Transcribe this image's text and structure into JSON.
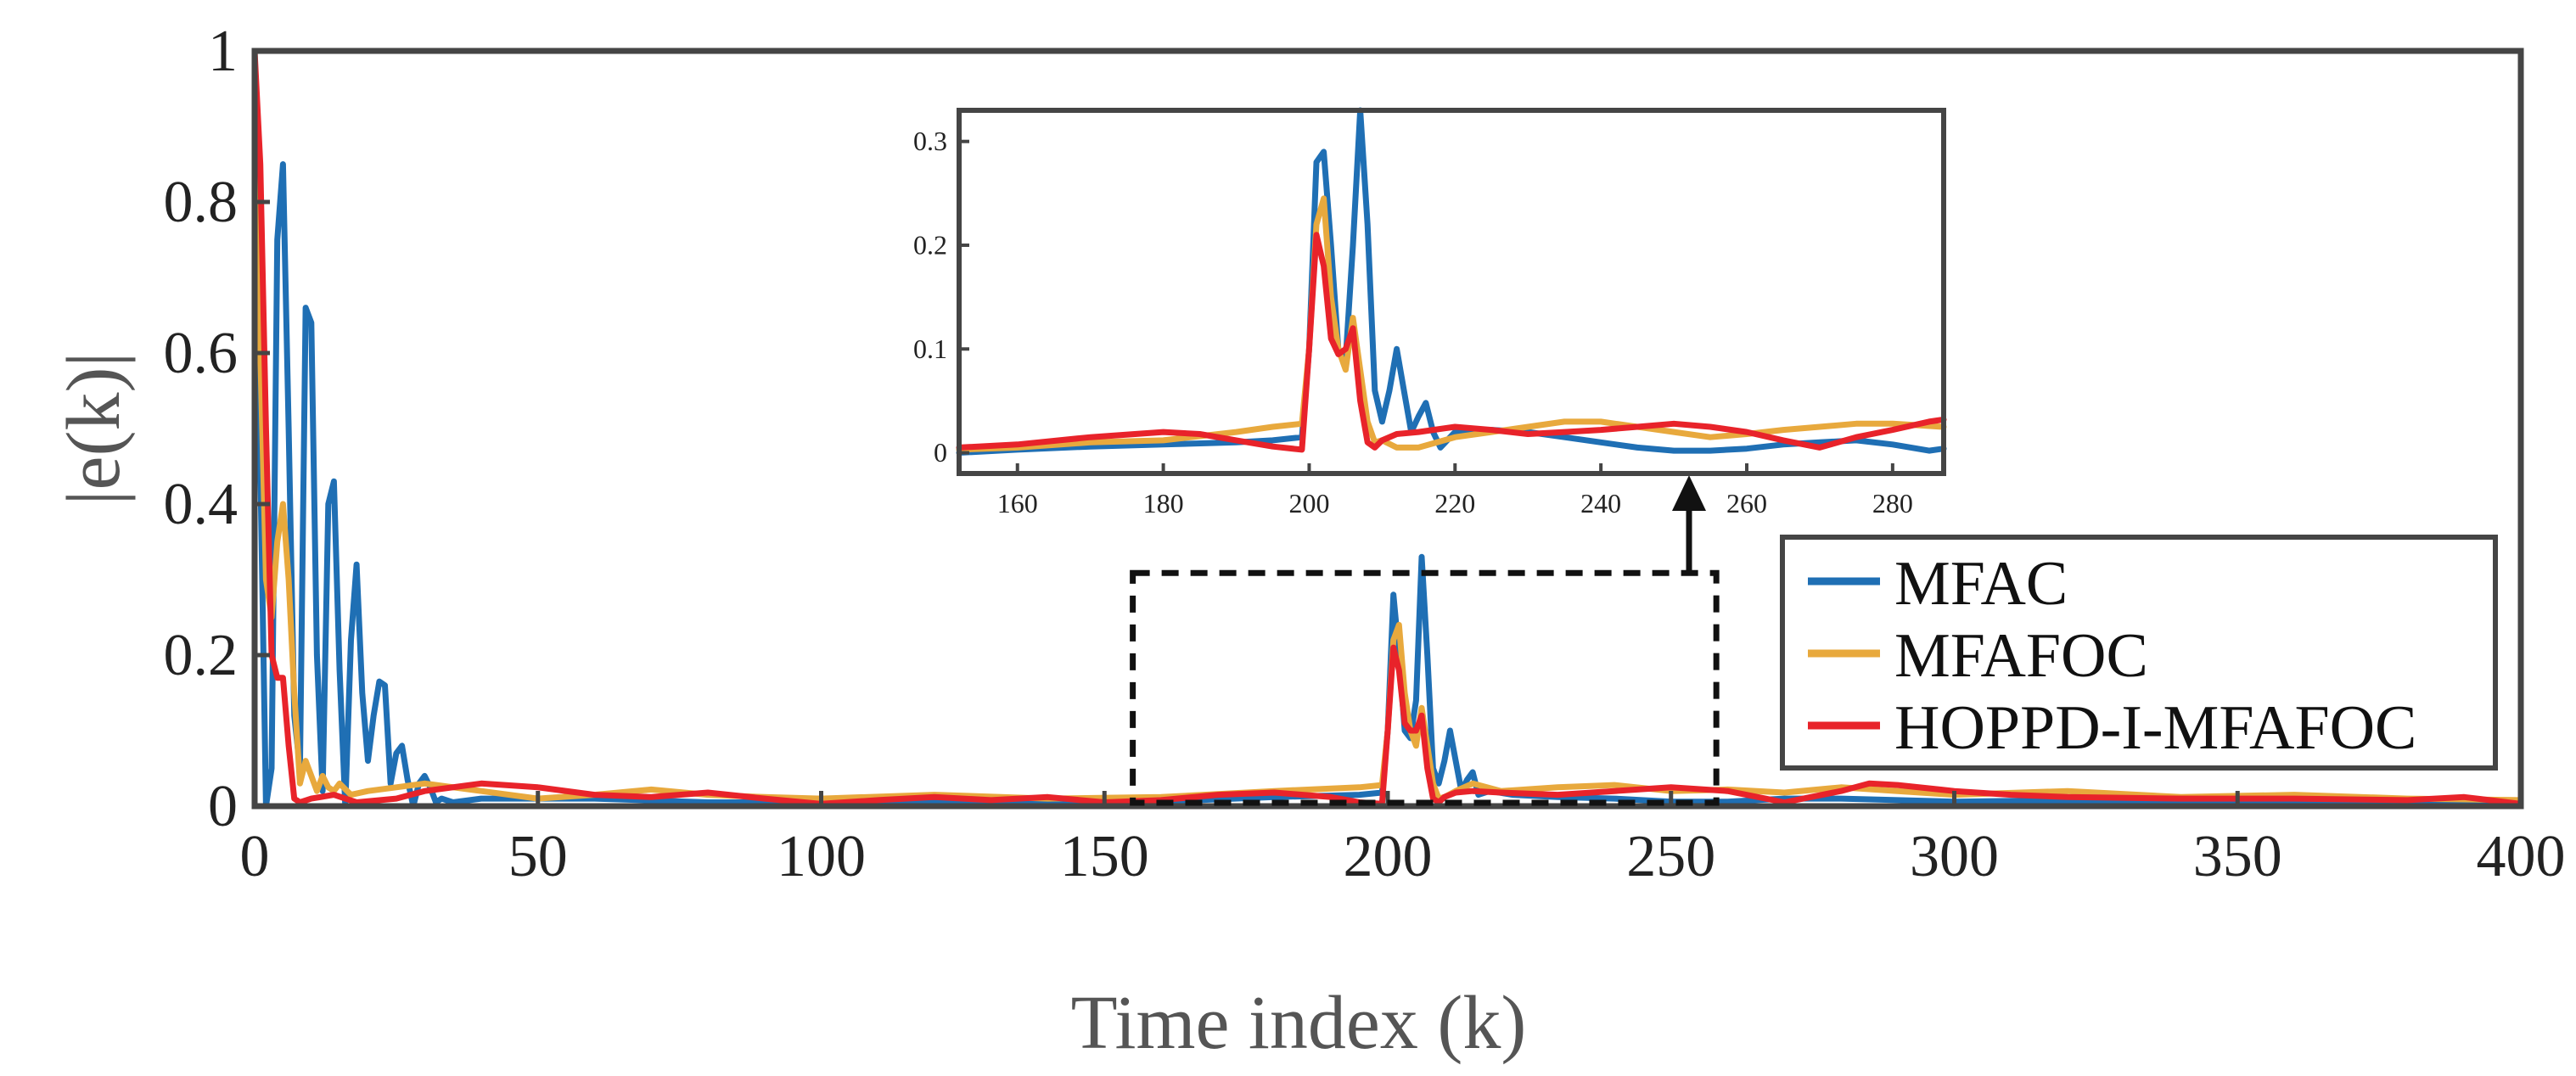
{
  "chart_data": [
    {
      "id": "main",
      "type": "line",
      "title": "",
      "xlabel": "Time index (k)",
      "ylabel": "|e(k)|",
      "xlim": [
        0,
        400
      ],
      "ylim": [
        0,
        1
      ],
      "xticks": [
        0,
        50,
        100,
        150,
        200,
        250,
        300,
        350,
        400
      ],
      "yticks": [
        0,
        0.2,
        0.4,
        0.6,
        0.8,
        1
      ],
      "xtick_labels": [
        "0",
        "50",
        "100",
        "150",
        "200",
        "250",
        "300",
        "350",
        "400"
      ],
      "ytick_labels": [
        "0",
        "0.2",
        "0.4",
        "0.6",
        "0.8",
        "1"
      ],
      "grid": false,
      "legend_position": "right",
      "series": [
        {
          "name": "MFAC",
          "color": "#1f6fb4",
          "x": [
            0,
            1,
            2,
            3,
            4,
            5,
            6,
            7,
            8,
            9,
            10,
            11,
            12,
            13,
            14,
            15,
            16,
            17,
            18,
            19,
            20,
            21,
            22,
            23,
            24,
            25,
            26,
            27,
            28,
            29,
            30,
            31,
            32,
            33,
            35,
            40,
            50,
            60,
            80,
            100,
            120,
            140,
            160,
            180,
            195,
            199,
            200,
            201,
            202,
            203,
            204,
            205,
            206,
            207,
            208,
            209,
            210,
            211,
            212,
            213,
            214,
            215,
            216,
            218,
            222,
            230,
            240,
            250,
            260,
            270,
            280,
            290,
            300,
            320,
            340,
            360,
            380,
            400
          ],
          "y": [
            1.0,
            0.45,
            0.0,
            0.05,
            0.75,
            0.85,
            0.5,
            0.12,
            0.05,
            0.66,
            0.64,
            0.2,
            0.02,
            0.4,
            0.43,
            0.18,
            0.0,
            0.22,
            0.32,
            0.15,
            0.06,
            0.12,
            0.165,
            0.16,
            0.03,
            0.07,
            0.08,
            0.035,
            0.0,
            0.03,
            0.04,
            0.025,
            0.005,
            0.01,
            0.005,
            0.01,
            0.01,
            0.01,
            0.005,
            0.005,
            0.008,
            0.004,
            0.006,
            0.012,
            0.015,
            0.018,
            0.1,
            0.28,
            0.2,
            0.1,
            0.09,
            0.14,
            0.33,
            0.2,
            0.05,
            0.03,
            0.06,
            0.1,
            0.06,
            0.02,
            0.035,
            0.045,
            0.015,
            0.02,
            0.015,
            0.012,
            0.01,
            0.006,
            0.006,
            0.01,
            0.01,
            0.008,
            0.006,
            0.008,
            0.004,
            0.006,
            0.005,
            0.004
          ]
        },
        {
          "name": "MFAFOC",
          "color": "#e8a93d",
          "x": [
            0,
            1,
            2,
            3,
            4,
            5,
            6,
            7,
            8,
            9,
            10,
            11,
            12,
            13,
            14,
            15,
            17,
            20,
            25,
            30,
            40,
            50,
            60,
            70,
            80,
            90,
            100,
            120,
            140,
            160,
            180,
            195,
            199,
            200,
            201,
            202,
            203,
            204,
            205,
            206,
            207,
            208,
            209,
            210,
            212,
            215,
            220,
            230,
            240,
            250,
            260,
            270,
            280,
            290,
            300,
            320,
            340,
            360,
            380,
            400
          ],
          "y": [
            1.0,
            0.6,
            0.3,
            0.25,
            0.35,
            0.4,
            0.3,
            0.15,
            0.03,
            0.06,
            0.04,
            0.02,
            0.04,
            0.025,
            0.02,
            0.03,
            0.015,
            0.02,
            0.025,
            0.03,
            0.02,
            0.01,
            0.015,
            0.022,
            0.015,
            0.012,
            0.01,
            0.015,
            0.01,
            0.012,
            0.02,
            0.025,
            0.028,
            0.1,
            0.22,
            0.24,
            0.15,
            0.1,
            0.08,
            0.13,
            0.08,
            0.03,
            0.01,
            0.012,
            0.02,
            0.03,
            0.02,
            0.025,
            0.028,
            0.02,
            0.022,
            0.018,
            0.025,
            0.02,
            0.015,
            0.02,
            0.012,
            0.015,
            0.01,
            0.008
          ]
        },
        {
          "name": "HOPPD-I-MFAFOC",
          "color": "#e8232a",
          "x": [
            0,
            1,
            2,
            3,
            4,
            5,
            6,
            7,
            8,
            10,
            14,
            18,
            25,
            30,
            40,
            50,
            60,
            70,
            80,
            90,
            100,
            110,
            120,
            130,
            140,
            150,
            160,
            170,
            180,
            190,
            195,
            199,
            200,
            201,
            202,
            203,
            204,
            205,
            206,
            207,
            208,
            209,
            210,
            212,
            215,
            220,
            230,
            240,
            250,
            260,
            270,
            280,
            285,
            290,
            300,
            310,
            320,
            340,
            360,
            380,
            390,
            400
          ],
          "y": [
            1.0,
            0.85,
            0.5,
            0.2,
            0.17,
            0.17,
            0.08,
            0.01,
            0.005,
            0.01,
            0.015,
            0.005,
            0.01,
            0.02,
            0.03,
            0.025,
            0.015,
            0.012,
            0.018,
            0.01,
            0.003,
            0.008,
            0.012,
            0.008,
            0.012,
            0.005,
            0.008,
            0.015,
            0.018,
            0.012,
            0.005,
            0.003,
            0.1,
            0.21,
            0.18,
            0.11,
            0.1,
            0.1,
            0.12,
            0.05,
            0.01,
            0.005,
            0.012,
            0.018,
            0.02,
            0.018,
            0.015,
            0.02,
            0.025,
            0.02,
            0.005,
            0.02,
            0.03,
            0.028,
            0.02,
            0.015,
            0.012,
            0.01,
            0.01,
            0.008,
            0.012,
            0.003
          ]
        }
      ],
      "zoom_region": {
        "x": [
          155,
          258
        ],
        "y": [
          0,
          0.32
        ]
      }
    },
    {
      "id": "inset",
      "type": "line",
      "title": "",
      "xlabel": "",
      "ylabel": "",
      "xlim": [
        152,
        287
      ],
      "ylim": [
        -0.02,
        0.33
      ],
      "xticks": [
        160,
        180,
        200,
        220,
        240,
        260,
        280
      ],
      "yticks": [
        0,
        0.1,
        0.2,
        0.3
      ],
      "xtick_labels": [
        "160",
        "180",
        "200",
        "220",
        "240",
        "260",
        "280"
      ],
      "ytick_labels": [
        "0",
        "0.1",
        "0.2",
        "0.3"
      ],
      "grid": false,
      "series": [
        {
          "name": "MFAC",
          "color": "#1f6fb4",
          "x": [
            152,
            160,
            170,
            180,
            190,
            195,
            199,
            200,
            201,
            202,
            203,
            204,
            205,
            206,
            207,
            208,
            209,
            210,
            211,
            212,
            213,
            214,
            215,
            216,
            217,
            218,
            220,
            225,
            230,
            235,
            240,
            245,
            250,
            255,
            260,
            265,
            270,
            275,
            280,
            285,
            287
          ],
          "y": [
            0.0,
            0.003,
            0.006,
            0.008,
            0.01,
            0.012,
            0.015,
            0.1,
            0.28,
            0.29,
            0.2,
            0.1,
            0.09,
            0.2,
            0.33,
            0.22,
            0.06,
            0.03,
            0.06,
            0.1,
            0.06,
            0.02,
            0.035,
            0.048,
            0.02,
            0.005,
            0.02,
            0.022,
            0.02,
            0.015,
            0.01,
            0.005,
            0.002,
            0.002,
            0.004,
            0.008,
            0.01,
            0.012,
            0.008,
            0.002,
            0.004
          ]
        },
        {
          "name": "MFAFOC",
          "color": "#e8a93d",
          "x": [
            152,
            160,
            170,
            180,
            190,
            195,
            199,
            200,
            201,
            202,
            203,
            204,
            205,
            206,
            207,
            208,
            209,
            210,
            212,
            215,
            220,
            225,
            230,
            235,
            240,
            245,
            250,
            255,
            260,
            265,
            270,
            275,
            280,
            287
          ],
          "y": [
            0.003,
            0.005,
            0.01,
            0.012,
            0.02,
            0.025,
            0.028,
            0.1,
            0.22,
            0.245,
            0.15,
            0.1,
            0.08,
            0.13,
            0.08,
            0.03,
            0.01,
            0.012,
            0.005,
            0.005,
            0.015,
            0.02,
            0.025,
            0.03,
            0.03,
            0.025,
            0.02,
            0.015,
            0.018,
            0.022,
            0.025,
            0.028,
            0.028,
            0.025
          ]
        },
        {
          "name": "HOPPD-I-MFAFOC",
          "color": "#e8232a",
          "x": [
            152,
            160,
            170,
            180,
            185,
            190,
            195,
            199,
            200,
            201,
            202,
            203,
            204,
            205,
            206,
            207,
            208,
            209,
            210,
            212,
            215,
            220,
            225,
            230,
            235,
            240,
            245,
            250,
            255,
            260,
            265,
            270,
            275,
            280,
            285,
            287
          ],
          "y": [
            0.005,
            0.008,
            0.015,
            0.02,
            0.018,
            0.012,
            0.006,
            0.003,
            0.1,
            0.21,
            0.18,
            0.11,
            0.095,
            0.1,
            0.12,
            0.05,
            0.01,
            0.005,
            0.012,
            0.018,
            0.02,
            0.025,
            0.022,
            0.018,
            0.02,
            0.022,
            0.025,
            0.028,
            0.025,
            0.02,
            0.012,
            0.005,
            0.015,
            0.022,
            0.03,
            0.032
          ]
        }
      ]
    }
  ]
}
